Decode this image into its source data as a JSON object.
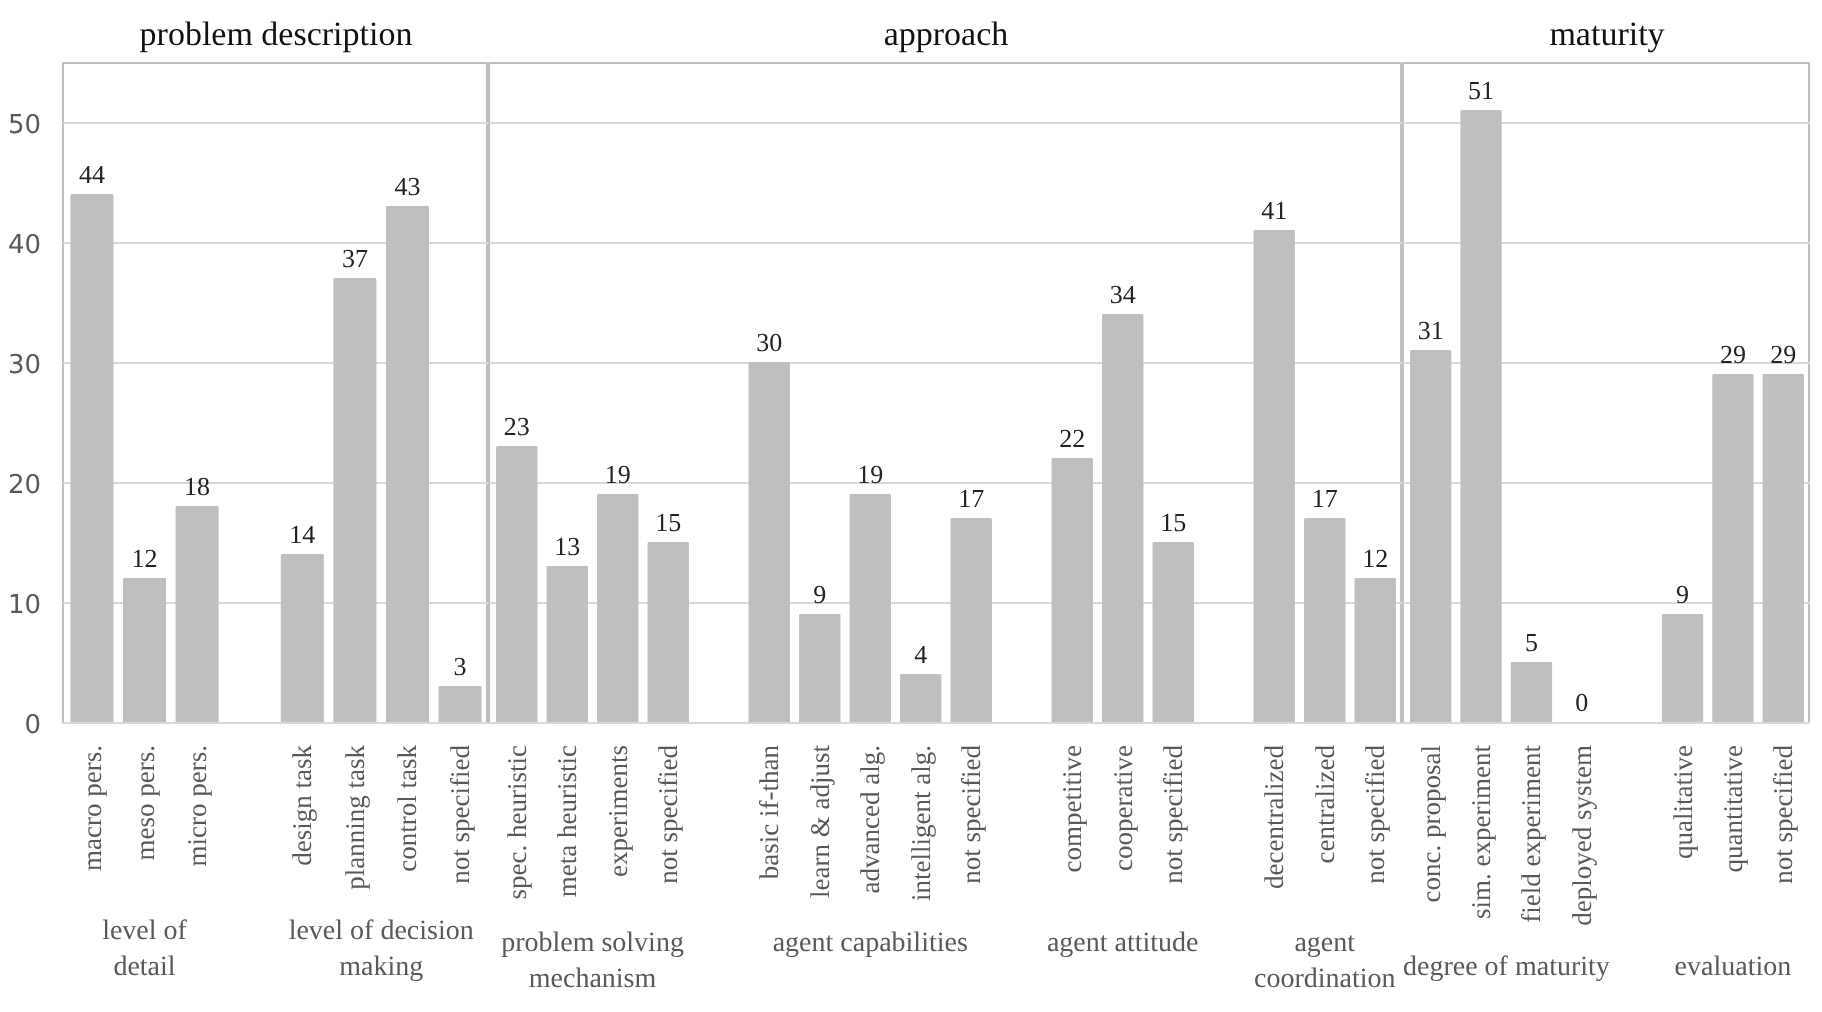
{
  "chart_data": [
    {
      "type": "bar",
      "title": "problem description",
      "categories": [
        "macro pers.",
        "meso pers.",
        "micro pers.",
        null,
        "design task",
        "planning task",
        "control task",
        "not specified"
      ],
      "values": [
        44,
        12,
        18,
        null,
        14,
        37,
        43,
        3
      ],
      "color": "#bfbfbf",
      "ylim": [
        0,
        55
      ],
      "yticks": [
        0,
        10,
        20,
        30,
        40,
        50
      ],
      "grid": "y",
      "data_labels": true,
      "annotations": [
        "level of detail",
        "level of decision making"
      ]
    },
    {
      "type": "bar",
      "title": "approach",
      "categories": [
        "spec. heuristic",
        "meta heuristic",
        "experiments",
        "not specified",
        null,
        "basic if-than",
        "learn & adjust",
        "advanced alg.",
        "intelligent alg.",
        "not specified",
        null,
        "competitive",
        "cooperative",
        "not specified",
        null,
        "decentralized",
        "centralized",
        "not specified"
      ],
      "values": [
        23,
        13,
        19,
        15,
        null,
        30,
        9,
        19,
        4,
        17,
        null,
        22,
        34,
        15,
        null,
        41,
        17,
        12
      ],
      "color": "#bfbfbf",
      "ylim": [
        0,
        55
      ],
      "yticks": [
        0,
        10,
        20,
        30,
        40,
        50
      ],
      "grid": "y",
      "data_labels": true,
      "tick_labels": "x",
      "annotations": [
        "problem solving mechanism",
        "agent capabilities",
        "agent attitude",
        "agent coordination"
      ]
    },
    {
      "type": "bar",
      "title": "maturity",
      "categories": [
        "conc. proposal",
        "sim. experiment",
        "field experiment",
        "deployed system",
        null,
        "qualitative",
        "quantitative",
        "not specified"
      ],
      "values": [
        31,
        51,
        5,
        0,
        null,
        9,
        29,
        29
      ],
      "color": "#bfbfbf",
      "ylim": [
        0,
        55
      ],
      "yticks": [
        0,
        10,
        20,
        30,
        40,
        50
      ],
      "grid": "y",
      "data_labels": true,
      "tick_labels": "x",
      "annotations": [
        "degree of maturity",
        "evaluation"
      ]
    }
  ]
}
